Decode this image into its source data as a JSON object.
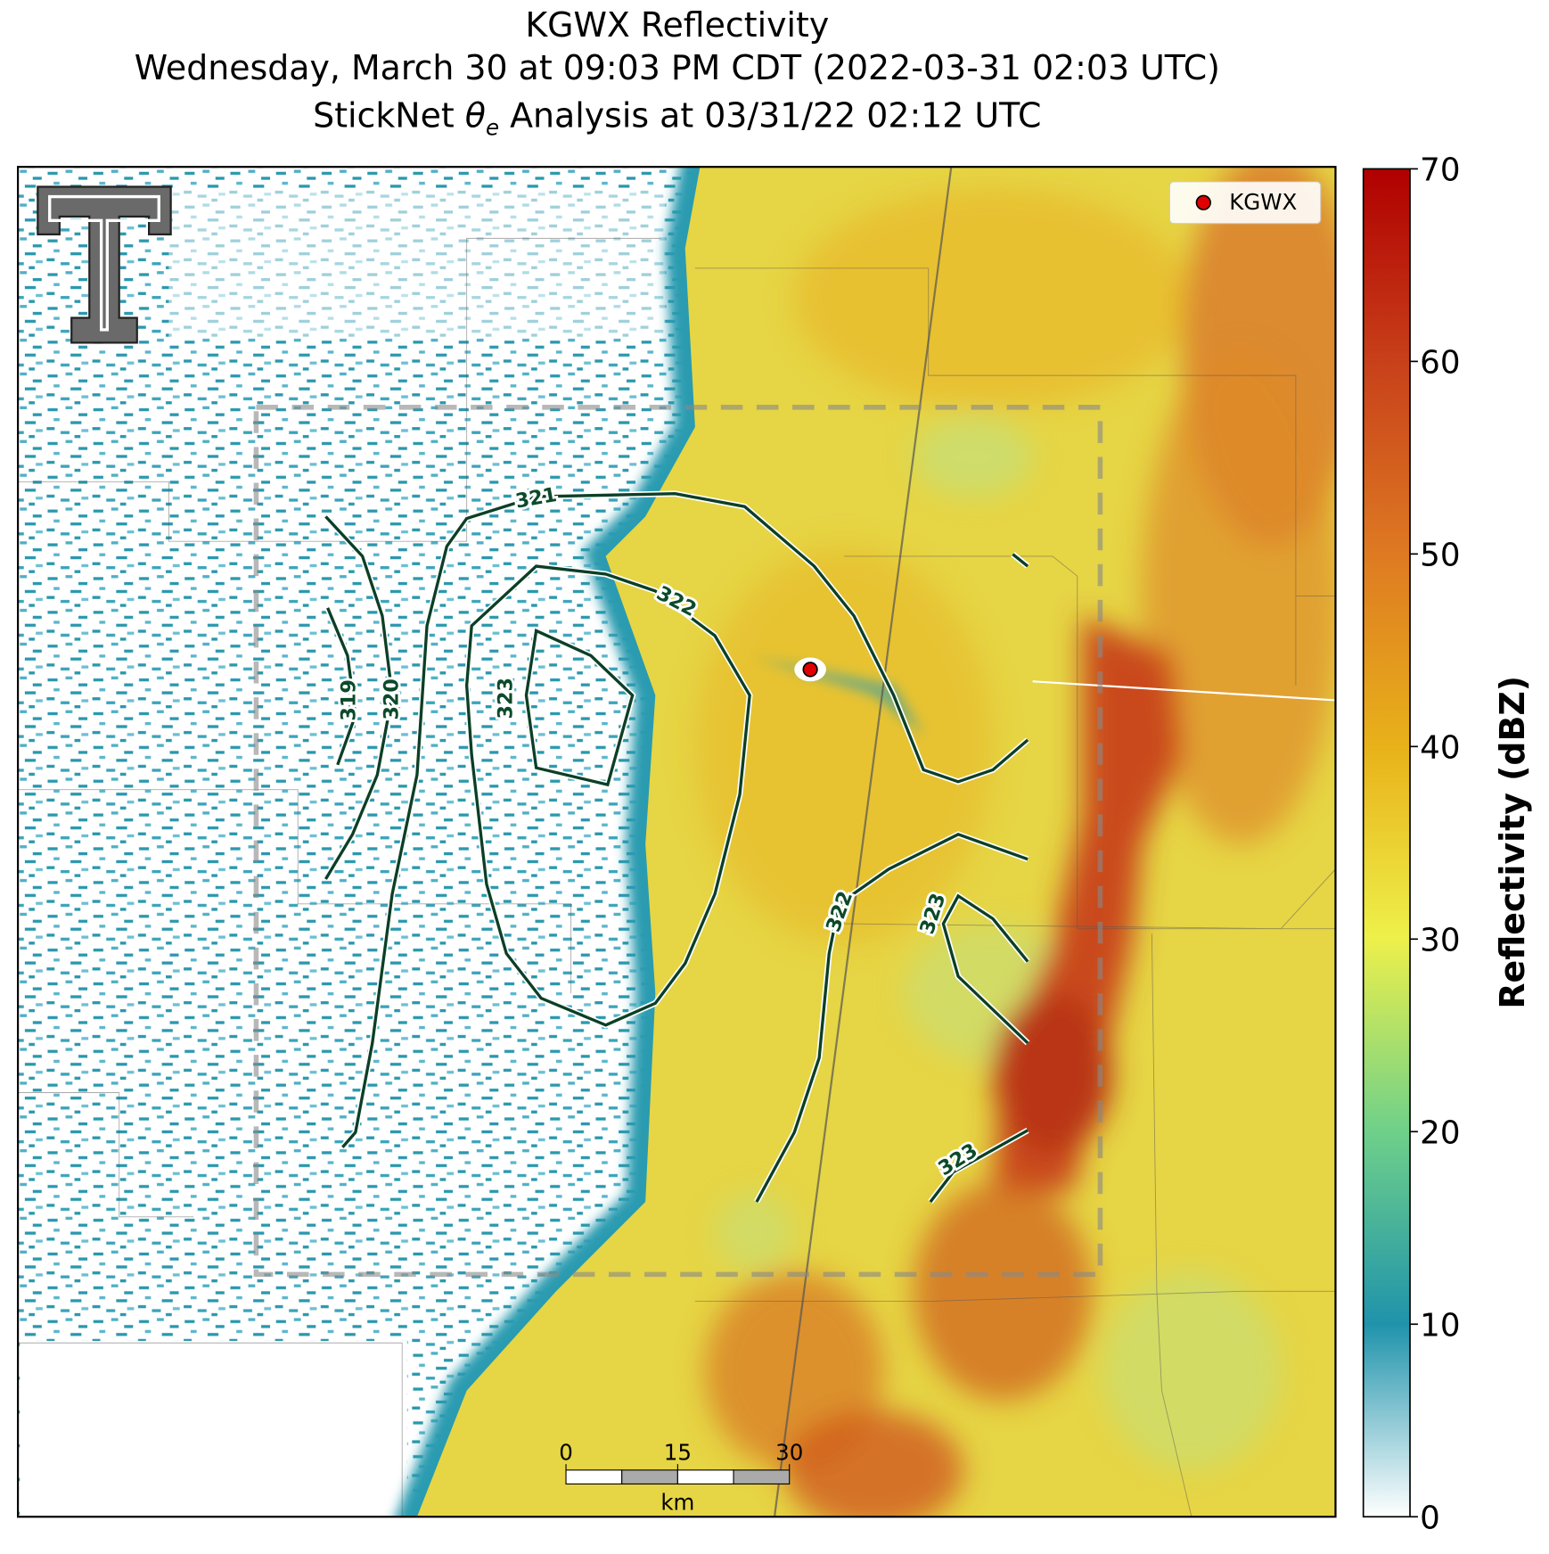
{
  "title": {
    "line1": "KGWX Reflectivity",
    "line2": "Wednesday, March 30 at 09:03 PM CDT (2022-03-31 02:03 UTC)",
    "line3": {
      "before": "StickNet",
      "symbol": "θ",
      "subscript": "e",
      "after": "Analysis at 03/31/22 02:12 UTC"
    }
  },
  "legend": {
    "label": "KGWX",
    "color": "#e00000"
  },
  "colorbar": {
    "label": "Reflectivity (dBZ)",
    "lim": [
      0,
      70
    ],
    "ticks": [
      0,
      10,
      20,
      30,
      40,
      50,
      60,
      70
    ]
  },
  "scale_bar": {
    "ticks": [
      0,
      15,
      30
    ],
    "unit": "km"
  },
  "contour_labels": [
    319,
    320,
    321,
    322,
    323,
    322,
    323,
    323
  ]
}
